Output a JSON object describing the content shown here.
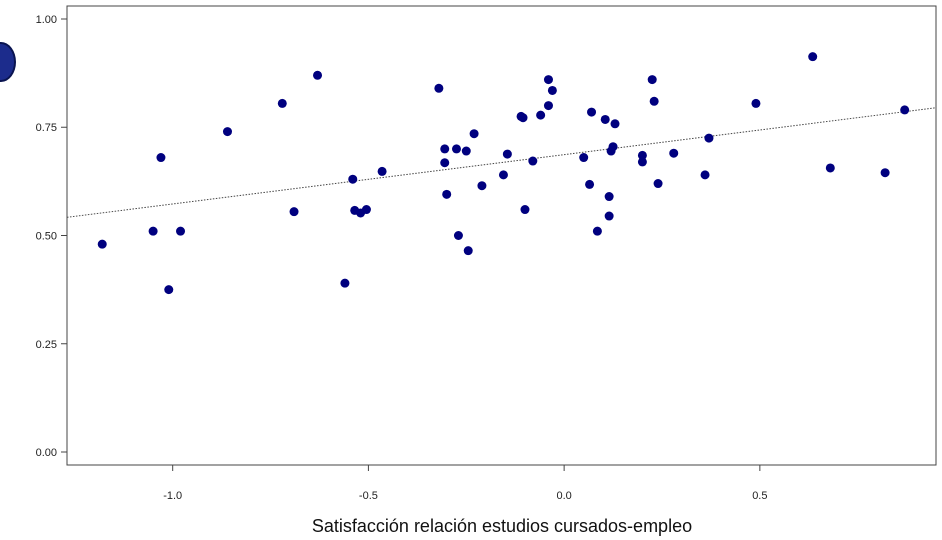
{
  "chart_data": {
    "type": "scatter",
    "title": "",
    "xlabel": "Satisfacción relación estudios cursados-empleo",
    "ylabel": "",
    "xlim": [
      -1.27,
      0.95
    ],
    "ylim": [
      -0.03,
      1.03
    ],
    "x_ticks": [
      -1.0,
      -0.5,
      0.0,
      0.5
    ],
    "x_tick_labels": [
      "-1.0",
      "-0.5",
      "0.0",
      "0.5"
    ],
    "y_ticks": [
      0.0,
      0.25,
      0.5,
      0.75,
      1.0
    ],
    "y_tick_labels": [
      "0.00",
      "0.25",
      "0.50",
      "0.75",
      "1.00"
    ],
    "grid": false,
    "point_color": "#00007f",
    "trend_line": {
      "style": "dotted",
      "color": "#444444",
      "x": [
        -1.27,
        0.95
      ],
      "y": [
        0.542,
        0.795
      ]
    },
    "points": [
      {
        "x": -1.18,
        "y": 0.48
      },
      {
        "x": -1.05,
        "y": 0.51
      },
      {
        "x": -1.03,
        "y": 0.68
      },
      {
        "x": -1.01,
        "y": 0.375
      },
      {
        "x": -0.98,
        "y": 0.51
      },
      {
        "x": -0.86,
        "y": 0.74
      },
      {
        "x": -0.72,
        "y": 0.805
      },
      {
        "x": -0.69,
        "y": 0.555
      },
      {
        "x": -0.63,
        "y": 0.87
      },
      {
        "x": -0.56,
        "y": 0.39
      },
      {
        "x": -0.54,
        "y": 0.63
      },
      {
        "x": -0.535,
        "y": 0.558
      },
      {
        "x": -0.52,
        "y": 0.552
      },
      {
        "x": -0.505,
        "y": 0.56
      },
      {
        "x": -0.465,
        "y": 0.648
      },
      {
        "x": -0.32,
        "y": 0.84
      },
      {
        "x": -0.305,
        "y": 0.7
      },
      {
        "x": -0.305,
        "y": 0.668
      },
      {
        "x": -0.3,
        "y": 0.595
      },
      {
        "x": -0.275,
        "y": 0.7
      },
      {
        "x": -0.27,
        "y": 0.5
      },
      {
        "x": -0.25,
        "y": 0.695
      },
      {
        "x": -0.245,
        "y": 0.465
      },
      {
        "x": -0.23,
        "y": 0.735
      },
      {
        "x": -0.21,
        "y": 0.615
      },
      {
        "x": -0.155,
        "y": 0.64
      },
      {
        "x": -0.145,
        "y": 0.688
      },
      {
        "x": -0.11,
        "y": 0.775
      },
      {
        "x": -0.105,
        "y": 0.772
      },
      {
        "x": -0.1,
        "y": 0.56
      },
      {
        "x": -0.08,
        "y": 0.672
      },
      {
        "x": -0.06,
        "y": 0.778
      },
      {
        "x": -0.04,
        "y": 0.8
      },
      {
        "x": -0.04,
        "y": 0.86
      },
      {
        "x": -0.03,
        "y": 0.835
      },
      {
        "x": 0.05,
        "y": 0.68
      },
      {
        "x": 0.065,
        "y": 0.618
      },
      {
        "x": 0.07,
        "y": 0.785
      },
      {
        "x": 0.085,
        "y": 0.51
      },
      {
        "x": 0.105,
        "y": 0.768
      },
      {
        "x": 0.115,
        "y": 0.59
      },
      {
        "x": 0.115,
        "y": 0.545
      },
      {
        "x": 0.12,
        "y": 0.695
      },
      {
        "x": 0.125,
        "y": 0.705
      },
      {
        "x": 0.13,
        "y": 0.758
      },
      {
        "x": 0.2,
        "y": 0.685
      },
      {
        "x": 0.2,
        "y": 0.67
      },
      {
        "x": 0.225,
        "y": 0.86
      },
      {
        "x": 0.23,
        "y": 0.81
      },
      {
        "x": 0.24,
        "y": 0.62
      },
      {
        "x": 0.28,
        "y": 0.69
      },
      {
        "x": 0.36,
        "y": 0.64
      },
      {
        "x": 0.37,
        "y": 0.725
      },
      {
        "x": 0.49,
        "y": 0.805
      },
      {
        "x": 0.635,
        "y": 0.913
      },
      {
        "x": 0.68,
        "y": 0.656
      },
      {
        "x": 0.82,
        "y": 0.645
      },
      {
        "x": 0.87,
        "y": 0.79
      }
    ]
  }
}
